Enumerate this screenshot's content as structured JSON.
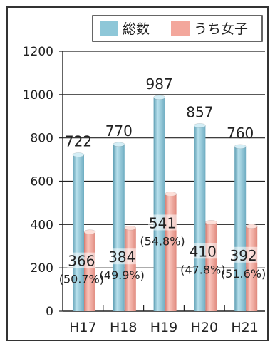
{
  "chart_data": {
    "type": "bar",
    "title": "",
    "xlabel": "",
    "ylabel": "",
    "categories": [
      "H17",
      "H18",
      "H19",
      "H20",
      "H21"
    ],
    "ylim": [
      0,
      1200
    ],
    "yticks": [
      0,
      200,
      400,
      600,
      800,
      1000,
      1200
    ],
    "grid": "horizontal",
    "legend_position": "top-right",
    "series": [
      {
        "name": "総数",
        "color": "#8ec7d8",
        "values": [
          722,
          770,
          987,
          857,
          760
        ],
        "labels": [
          "722",
          "770",
          "987",
          "857",
          "760"
        ]
      },
      {
        "name": "うち女子",
        "color": "#f3a79c",
        "values": [
          366,
          384,
          541,
          410,
          392
        ],
        "labels": [
          "366",
          "384",
          "541",
          "410",
          "392"
        ],
        "percent_labels": [
          "(50.7%)",
          "(49.9%)",
          "(54.8%)",
          "(47.8%)",
          "(51.6%)"
        ]
      }
    ]
  }
}
